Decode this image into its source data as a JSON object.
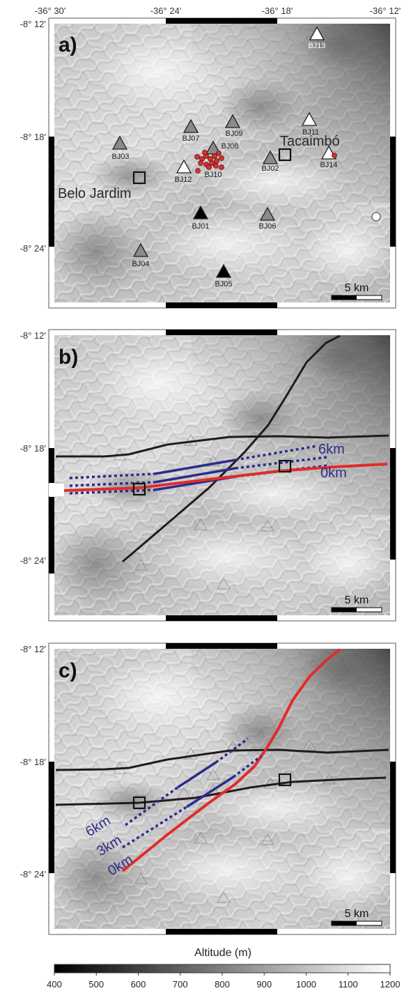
{
  "coordinates": {
    "top_lon": [
      "-36° 30'",
      "-36° 24'",
      "-36° 18'",
      "-36° 12'"
    ],
    "lat": [
      "-8° 12'",
      "-8° 18'",
      "-8° 24'"
    ]
  },
  "panels": [
    {
      "letter": "a)",
      "scale": "5 km"
    },
    {
      "letter": "b)",
      "scale": "5 km"
    },
    {
      "letter": "c)",
      "scale": "5 km"
    }
  ],
  "towns": {
    "belo_jardim": "Belo Jardim",
    "tacaimbo": "Tacaimbó"
  },
  "stations": [
    {
      "id": "BJ01",
      "fill": "black"
    },
    {
      "id": "BJ02",
      "fill": "gray"
    },
    {
      "id": "BJ03",
      "fill": "gray"
    },
    {
      "id": "BJ04",
      "fill": "gray"
    },
    {
      "id": "BJ05",
      "fill": "black"
    },
    {
      "id": "BJ06",
      "fill": "gray"
    },
    {
      "id": "BJ07",
      "fill": "gray"
    },
    {
      "id": "BJ08",
      "fill": "gray"
    },
    {
      "id": "BJ09",
      "fill": "gray"
    },
    {
      "id": "BJ10",
      "fill": "gray"
    },
    {
      "id": "BJ11",
      "fill": "white"
    },
    {
      "id": "BJ12",
      "fill": "white"
    },
    {
      "id": "BJ13",
      "fill": "white"
    },
    {
      "id": "BJ14",
      "fill": "white"
    }
  ],
  "depth_labels": {
    "b": [
      "6km",
      "0km"
    ],
    "c": [
      "6km",
      "3km",
      "0km"
    ]
  },
  "colorbar": {
    "title": "Altitude (m)",
    "ticks": [
      "400",
      "500",
      "600",
      "700",
      "800",
      "900",
      "1000",
      "1100",
      "1200"
    ],
    "min": 400,
    "max": 1200
  },
  "colors": {
    "fault_model": "#e32b2b",
    "fault_trace": "#231a1a",
    "depth_contour": "#2b2b8c",
    "epicenter": "#d93030"
  }
}
